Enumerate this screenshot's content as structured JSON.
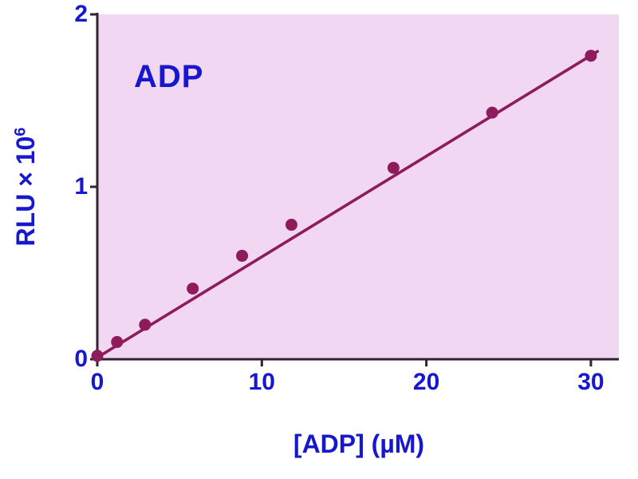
{
  "chart_data": {
    "type": "scatter",
    "title": "ADP",
    "xlabel": "[ADP] (µM)",
    "ylabel_base": "RLU × 10",
    "ylabel_exponent": "6",
    "xlim": [
      0,
      31.7
    ],
    "ylim": [
      0,
      2
    ],
    "xticks": [
      0,
      10,
      20,
      30
    ],
    "yticks": [
      0,
      1,
      2
    ],
    "points": [
      {
        "x": 0,
        "y": 0.02
      },
      {
        "x": 1.2,
        "y": 0.1
      },
      {
        "x": 2.9,
        "y": 0.2
      },
      {
        "x": 5.8,
        "y": 0.41
      },
      {
        "x": 8.8,
        "y": 0.6
      },
      {
        "x": 11.8,
        "y": 0.78
      },
      {
        "x": 18,
        "y": 1.11
      },
      {
        "x": 24,
        "y": 1.43
      },
      {
        "x": 30,
        "y": 1.76
      }
    ],
    "fit_line": {
      "x1": 0,
      "y1": 0.01,
      "x2": 30.4,
      "y2": 1.785
    },
    "legend": "none",
    "grid": "off",
    "colors": {
      "series": "#8e1b5b",
      "plot_background": "#f1d7f1",
      "label": "#1717cf",
      "axis": "#2f2430"
    }
  }
}
